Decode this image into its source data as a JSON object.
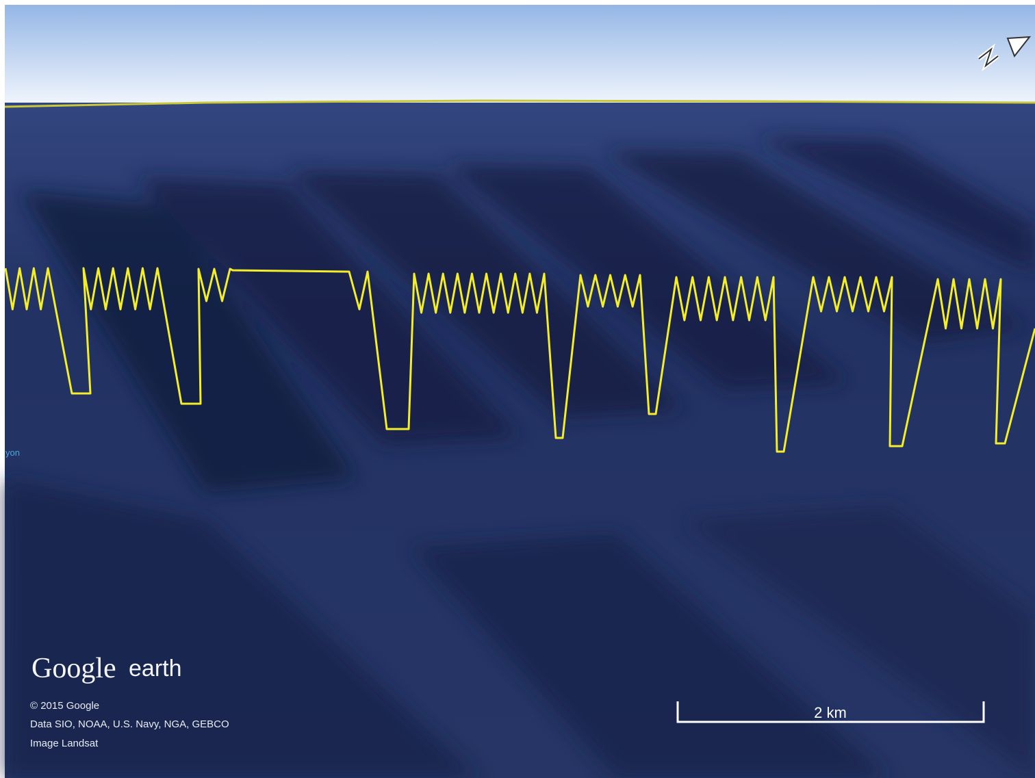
{
  "logo": {
    "brand": "Google",
    "product": "earth"
  },
  "attribution": {
    "copyright": "© 2015 Google",
    "data": "Data SIO, NOAA, U.S. Navy, NGA, GEBCO",
    "image": "Image Landsat"
  },
  "place_label": "yon",
  "scale_bar": {
    "label": "2 km"
  }
}
